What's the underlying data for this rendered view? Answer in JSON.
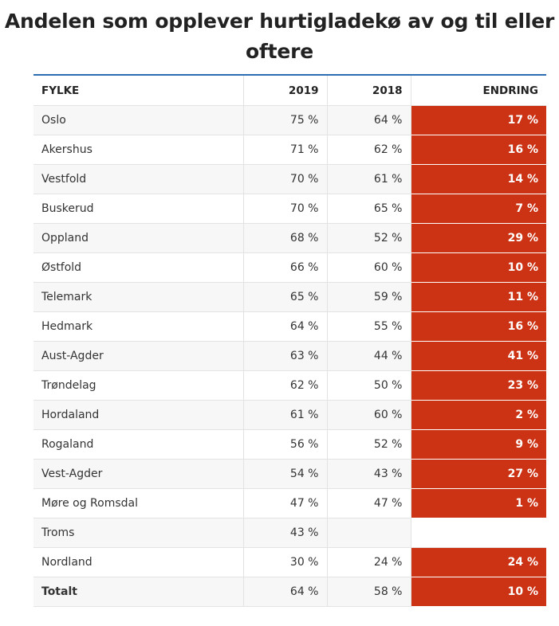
{
  "chart_data": {
    "type": "table",
    "title": "Andelen som opplever hurtigladekø av og til eller oftere",
    "columns": [
      "FYLKE",
      "2019",
      "2018",
      "ENDRING"
    ],
    "rows": [
      {
        "fylke": "Oslo",
        "v2019": "75 %",
        "v2018": "64 %",
        "endring": "17 %"
      },
      {
        "fylke": "Akershus",
        "v2019": "71 %",
        "v2018": "62 %",
        "endring": "16 %"
      },
      {
        "fylke": "Vestfold",
        "v2019": "70 %",
        "v2018": "61 %",
        "endring": "14 %"
      },
      {
        "fylke": "Buskerud",
        "v2019": "70 %",
        "v2018": "65 %",
        "endring": "7 %"
      },
      {
        "fylke": "Oppland",
        "v2019": "68 %",
        "v2018": "52 %",
        "endring": "29 %"
      },
      {
        "fylke": "Østfold",
        "v2019": "66 %",
        "v2018": "60 %",
        "endring": "10 %"
      },
      {
        "fylke": "Telemark",
        "v2019": "65 %",
        "v2018": "59 %",
        "endring": "11 %"
      },
      {
        "fylke": "Hedmark",
        "v2019": "64 %",
        "v2018": "55 %",
        "endring": "16 %"
      },
      {
        "fylke": "Aust-Agder",
        "v2019": "63 %",
        "v2018": "44 %",
        "endring": "41 %"
      },
      {
        "fylke": "Trøndelag",
        "v2019": "62 %",
        "v2018": "50 %",
        "endring": "23 %"
      },
      {
        "fylke": "Hordaland",
        "v2019": "61 %",
        "v2018": "60 %",
        "endring": "2 %"
      },
      {
        "fylke": "Rogaland",
        "v2019": "56 %",
        "v2018": "52 %",
        "endring": "9 %"
      },
      {
        "fylke": "Vest-Agder",
        "v2019": "54 %",
        "v2018": "43 %",
        "endring": "27 %"
      },
      {
        "fylke": "Møre og Romsdal",
        "v2019": "47 %",
        "v2018": "47 %",
        "endring": "1 %"
      },
      {
        "fylke": "Troms",
        "v2019": "43 %",
        "v2018": "",
        "endring": ""
      },
      {
        "fylke": "Nordland",
        "v2019": "30 %",
        "v2018": "24 %",
        "endring": "24 %"
      }
    ],
    "total": {
      "fylke": "Totalt",
      "v2019": "64 %",
      "v2018": "58 %",
      "endring": "10 %"
    }
  },
  "colors": {
    "change_cell": "#cc3314",
    "header_rule": "#2c6cb0",
    "row_shade": "#f7f7f7"
  }
}
